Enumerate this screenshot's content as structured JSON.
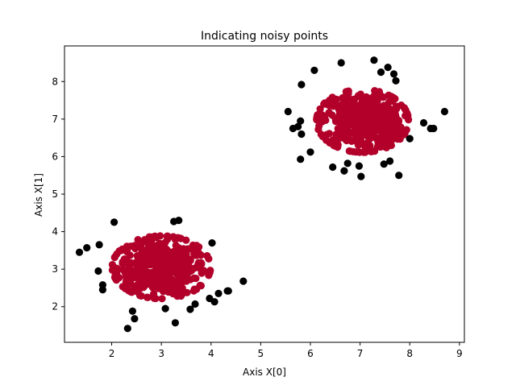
{
  "chart_data": {
    "type": "scatter",
    "title": "Indicating noisy points",
    "xlabel": "Axis X[0]",
    "ylabel": "Axis X[1]",
    "xlim": [
      1.05,
      9.1
    ],
    "ylim": [
      1.05,
      8.95
    ],
    "xticks": [
      2,
      3,
      4,
      5,
      6,
      7,
      8,
      9
    ],
    "yticks": [
      2,
      3,
      4,
      5,
      6,
      7,
      8
    ],
    "grid": false,
    "legend": "none",
    "colors": {
      "core": "#b2002a",
      "noise": "#000000"
    },
    "clusters": [
      {
        "center": [
          3.0,
          3.05
        ],
        "spread": [
          0.45,
          0.38
        ],
        "count": 500
      },
      {
        "center": [
          7.05,
          6.95
        ],
        "spread": [
          0.42,
          0.38
        ],
        "count": 500
      }
    ],
    "noise_points": [
      [
        1.35,
        3.45
      ],
      [
        1.5,
        3.57
      ],
      [
        1.75,
        3.65
      ],
      [
        1.73,
        2.95
      ],
      [
        1.82,
        2.58
      ],
      [
        1.82,
        2.45
      ],
      [
        2.05,
        4.25
      ],
      [
        2.32,
        1.42
      ],
      [
        2.42,
        1.88
      ],
      [
        2.46,
        1.68
      ],
      [
        3.08,
        1.95
      ],
      [
        3.25,
        4.27
      ],
      [
        3.35,
        4.3
      ],
      [
        3.28,
        1.57
      ],
      [
        3.58,
        1.93
      ],
      [
        3.68,
        2.07
      ],
      [
        3.97,
        2.22
      ],
      [
        4.02,
        3.7
      ],
      [
        4.07,
        2.13
      ],
      [
        4.15,
        2.35
      ],
      [
        4.35,
        2.42
      ],
      [
        4.33,
        2.42
      ],
      [
        4.65,
        2.68
      ],
      [
        5.55,
        7.2
      ],
      [
        5.65,
        6.75
      ],
      [
        5.75,
        6.8
      ],
      [
        5.8,
        5.93
      ],
      [
        5.82,
        7.92
      ],
      [
        5.82,
        6.6
      ],
      [
        5.8,
        6.95
      ],
      [
        6.0,
        6.12
      ],
      [
        6.08,
        8.3
      ],
      [
        6.45,
        5.72
      ],
      [
        6.62,
        8.5
      ],
      [
        6.68,
        5.62
      ],
      [
        6.75,
        5.82
      ],
      [
        6.98,
        5.75
      ],
      [
        7.02,
        5.47
      ],
      [
        7.28,
        8.57
      ],
      [
        7.42,
        8.25
      ],
      [
        7.48,
        5.8
      ],
      [
        7.56,
        8.38
      ],
      [
        7.6,
        5.88
      ],
      [
        7.68,
        8.2
      ],
      [
        7.72,
        8.02
      ],
      [
        7.78,
        5.5
      ],
      [
        8.0,
        6.48
      ],
      [
        8.28,
        6.9
      ],
      [
        8.42,
        6.75
      ],
      [
        8.48,
        6.75
      ],
      [
        8.7,
        7.2
      ]
    ]
  }
}
